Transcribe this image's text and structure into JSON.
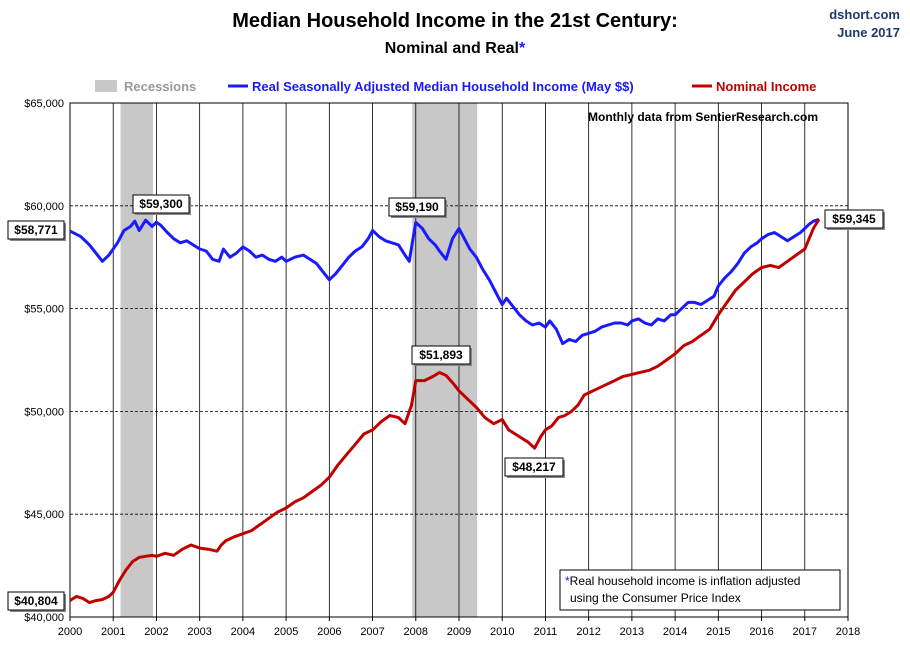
{
  "header": {
    "title": "Median Household Income in the 21st Century:",
    "subtitle_text": "Nominal and Real",
    "subtitle_star": "*",
    "source_line1": "dshort.com",
    "source_line2": "June 2017"
  },
  "annotations": {
    "monthly_note": "Monthly data from SentierResearch.com",
    "footnote_star": "*",
    "footnote_line1": "Real household income is inflation adjusted",
    "footnote_line2": "using the Consumer Price Index"
  },
  "colors": {
    "real": "#1a1aff",
    "nominal": "#c00000",
    "recession": "#c8c8c8",
    "recession_label": "#999999"
  },
  "chart_data": {
    "type": "line",
    "title": "Median Household Income in the 21st Century: Nominal and Real*",
    "xlim": [
      2000,
      2018
    ],
    "ylim": [
      40000,
      65000
    ],
    "grid": true,
    "legend_position": "top",
    "x_ticks": [
      "2000",
      "2001",
      "2002",
      "2003",
      "2004",
      "2005",
      "2006",
      "2007",
      "2008",
      "2009",
      "2010",
      "2011",
      "2012",
      "2013",
      "2014",
      "2015",
      "2016",
      "2017",
      "2018"
    ],
    "y_ticks": [
      "$40,000",
      "$45,000",
      "$50,000",
      "$55,000",
      "$60,000",
      "$65,000"
    ],
    "legend": {
      "recessions": "Recessions",
      "real": "Real Seasonally Adjusted Median Household Income (May $$)",
      "nominal": "Nominal Income"
    },
    "recessions": [
      {
        "start": 2001.17,
        "end": 2001.92
      },
      {
        "start": 2007.92,
        "end": 2009.42
      }
    ],
    "series": [
      {
        "name": "Real Seasonally Adjusted Median Household Income (May $$)",
        "x": [
          2000.0,
          2000.25,
          2000.45,
          2000.6,
          2000.75,
          2000.9,
          2001.0,
          2001.1,
          2001.25,
          2001.4,
          2001.5,
          2001.6,
          2001.75,
          2001.9,
          2002.0,
          2002.1,
          2002.25,
          2002.4,
          2002.55,
          2002.7,
          2002.85,
          2003.0,
          2003.15,
          2003.3,
          2003.45,
          2003.55,
          2003.7,
          2003.85,
          2004.0,
          2004.15,
          2004.3,
          2004.45,
          2004.6,
          2004.75,
          2004.9,
          2005.0,
          2005.2,
          2005.4,
          2005.55,
          2005.7,
          2005.85,
          2006.0,
          2006.15,
          2006.3,
          2006.45,
          2006.6,
          2006.75,
          2006.9,
          2007.0,
          2007.15,
          2007.3,
          2007.45,
          2007.6,
          2007.75,
          2007.85,
          2007.92,
          2008.0,
          2008.15,
          2008.3,
          2008.45,
          2008.55,
          2008.7,
          2008.85,
          2009.0,
          2009.1,
          2009.25,
          2009.4,
          2009.55,
          2009.7,
          2009.85,
          2010.0,
          2010.1,
          2010.25,
          2010.4,
          2010.55,
          2010.7,
          2010.85,
          2011.0,
          2011.1,
          2011.25,
          2011.4,
          2011.55,
          2011.7,
          2011.85,
          2012.0,
          2012.15,
          2012.3,
          2012.45,
          2012.6,
          2012.75,
          2012.9,
          2013.0,
          2013.15,
          2013.3,
          2013.45,
          2013.6,
          2013.75,
          2013.9,
          2014.0,
          2014.15,
          2014.3,
          2014.45,
          2014.6,
          2014.75,
          2014.9,
          2015.0,
          2015.15,
          2015.3,
          2015.45,
          2015.6,
          2015.75,
          2015.9,
          2016.0,
          2016.15,
          2016.3,
          2016.45,
          2016.6,
          2016.75,
          2016.9,
          2017.0,
          2017.1,
          2017.2,
          2017.33
        ],
        "y": [
          58771,
          58500,
          58100,
          57700,
          57300,
          57600,
          57900,
          58200,
          58800,
          59000,
          59250,
          58800,
          59300,
          59000,
          59200,
          59050,
          58700,
          58400,
          58200,
          58300,
          58100,
          57900,
          57800,
          57400,
          57300,
          57900,
          57500,
          57700,
          58000,
          57800,
          57500,
          57600,
          57400,
          57300,
          57500,
          57300,
          57500,
          57600,
          57400,
          57200,
          56800,
          56400,
          56700,
          57100,
          57500,
          57800,
          58000,
          58400,
          58800,
          58500,
          58300,
          58200,
          58100,
          57600,
          57300,
          58200,
          59190,
          58900,
          58400,
          58100,
          57800,
          57400,
          58400,
          58900,
          58500,
          57900,
          57500,
          56900,
          56400,
          55800,
          55200,
          55500,
          55100,
          54700,
          54400,
          54200,
          54300,
          54100,
          54400,
          54000,
          53300,
          53500,
          53400,
          53700,
          53800,
          53900,
          54100,
          54200,
          54300,
          54300,
          54200,
          54400,
          54500,
          54300,
          54200,
          54500,
          54400,
          54700,
          54700,
          55000,
          55300,
          55300,
          55200,
          55400,
          55600,
          56100,
          56500,
          56800,
          57200,
          57700,
          58000,
          58200,
          58400,
          58600,
          58700,
          58500,
          58300,
          58500,
          58700,
          58900,
          59100,
          59250,
          59345
        ]
      },
      {
        "name": "Nominal Income",
        "x": [
          2000.0,
          2000.15,
          2000.3,
          2000.45,
          2000.6,
          2000.75,
          2000.9,
          2001.0,
          2001.15,
          2001.3,
          2001.45,
          2001.6,
          2001.75,
          2001.9,
          2002.0,
          2002.2,
          2002.4,
          2002.6,
          2002.8,
          2003.0,
          2003.2,
          2003.4,
          2003.5,
          2003.6,
          2003.8,
          2004.0,
          2004.2,
          2004.4,
          2004.6,
          2004.8,
          2005.0,
          2005.2,
          2005.4,
          2005.6,
          2005.8,
          2006.0,
          2006.2,
          2006.4,
          2006.6,
          2006.8,
          2007.0,
          2007.2,
          2007.4,
          2007.6,
          2007.75,
          2007.9,
          2008.0,
          2008.2,
          2008.4,
          2008.55,
          2008.7,
          2008.85,
          2009.0,
          2009.2,
          2009.4,
          2009.6,
          2009.8,
          2010.0,
          2010.15,
          2010.3,
          2010.45,
          2010.6,
          2010.75,
          2010.9,
          2011.0,
          2011.15,
          2011.3,
          2011.45,
          2011.6,
          2011.75,
          2011.9,
          2012.0,
          2012.2,
          2012.4,
          2012.6,
          2012.8,
          2013.0,
          2013.2,
          2013.4,
          2013.6,
          2013.8,
          2014.0,
          2014.2,
          2014.4,
          2014.6,
          2014.8,
          2015.0,
          2015.2,
          2015.4,
          2015.6,
          2015.8,
          2016.0,
          2016.2,
          2016.4,
          2016.6,
          2016.8,
          2017.0,
          2017.1,
          2017.2,
          2017.33
        ],
        "y": [
          40804,
          41000,
          40900,
          40700,
          40800,
          40850,
          41000,
          41200,
          41800,
          42300,
          42700,
          42900,
          42950,
          43000,
          42950,
          43100,
          43000,
          43300,
          43500,
          43350,
          43300,
          43200,
          43500,
          43700,
          43900,
          44050,
          44200,
          44500,
          44800,
          45100,
          45300,
          45600,
          45800,
          46100,
          46400,
          46800,
          47400,
          47900,
          48400,
          48900,
          49100,
          49500,
          49800,
          49700,
          49400,
          50300,
          51500,
          51500,
          51700,
          51893,
          51750,
          51400,
          51000,
          50600,
          50200,
          49700,
          49400,
          49600,
          49100,
          48900,
          48700,
          48500,
          48217,
          48800,
          49100,
          49300,
          49700,
          49800,
          50000,
          50300,
          50800,
          50900,
          51100,
          51300,
          51500,
          51700,
          51800,
          51900,
          52000,
          52200,
          52500,
          52800,
          53200,
          53400,
          53700,
          54000,
          54700,
          55300,
          55900,
          56300,
          56700,
          57000,
          57100,
          57000,
          57300,
          57600,
          57900,
          58400,
          58900,
          59345
        ]
      }
    ],
    "callouts": {
      "real_start": "$58,771",
      "real_2001": "$59,300",
      "real_2008": "$59,190",
      "real_latest": "$59,345",
      "nominal_peak": "$51,893",
      "nominal_trough": "$48,217",
      "nominal_start": "$40,804"
    }
  }
}
